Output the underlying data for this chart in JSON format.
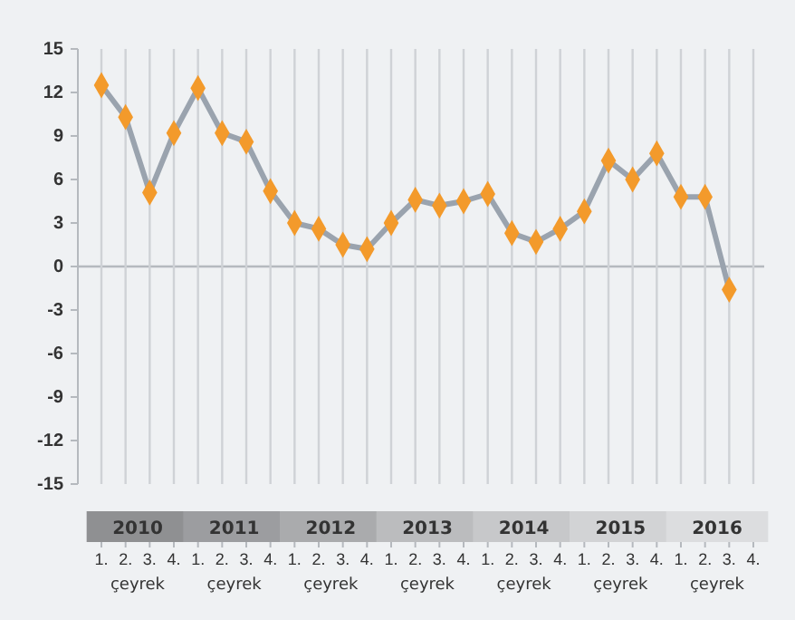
{
  "chart_data": {
    "type": "line",
    "categories": [
      "1.",
      "2.",
      "3.",
      "4.",
      "1.",
      "2.",
      "3.",
      "4.",
      "1.",
      "2.",
      "3.",
      "4.",
      "1.",
      "2.",
      "3.",
      "4.",
      "1.",
      "2.",
      "3.",
      "4.",
      "1.",
      "2.",
      "3.",
      "4.",
      "1.",
      "2.",
      "3.",
      "4."
    ],
    "series": [
      {
        "color": "#9aa3ae",
        "values": [
          12.5,
          10.3,
          5.1,
          9.2,
          12.3,
          9.2,
          8.6,
          5.2,
          3.0,
          2.6,
          1.5,
          1.2,
          3.0,
          4.6,
          4.2,
          4.5,
          5.0,
          2.3,
          1.7,
          2.6,
          3.8,
          7.3,
          6.0,
          7.8,
          4.8,
          4.8,
          -1.6,
          null
        ]
      }
    ],
    "marker": "diamond",
    "ylim": [
      -15,
      15
    ],
    "yticks": [
      -15,
      -12,
      -9,
      -6,
      -3,
      0,
      3,
      6,
      9,
      12,
      15
    ],
    "grid": "x",
    "ref_lines": [
      {
        "axis": "y",
        "value": 0,
        "color": "#b5b9be"
      }
    ],
    "annotations": [
      "2010",
      "2011",
      "2012",
      "2013",
      "2014",
      "2015",
      "2016",
      "çeyrek",
      "çeyrek",
      "çeyrek",
      "çeyrek",
      "çeyrek",
      "çeyrek",
      "çeyrek"
    ]
  }
}
